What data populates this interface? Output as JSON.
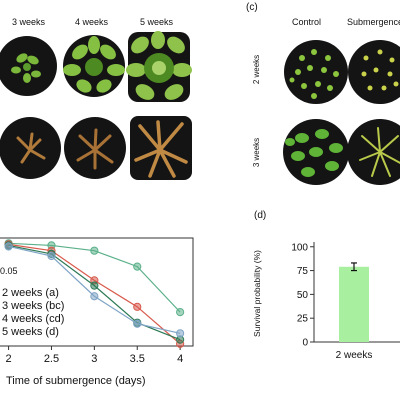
{
  "panel_a": {
    "top_labels": [
      "3 weeks",
      "4 weeks",
      "5 weeks"
    ],
    "colors": {
      "leaf": "#7bb73a",
      "leaf_dark": "#4e8a22",
      "wilted": "#b07a3a",
      "soil": "#141414"
    }
  },
  "panel_c": {
    "letter": "(c)",
    "col_labels": [
      "Control",
      "Submergence"
    ],
    "row_labels": [
      "2 weeks",
      "3 weeks"
    ]
  },
  "panel_d": {
    "letter": "(d)",
    "bar_color": "#a8f0a0"
  },
  "chart_data": [
    {
      "type": "line",
      "xlabel": "Time of submergence (days)",
      "ylabel": "",
      "xlim": [
        1.9,
        4.15
      ],
      "ylim": [
        -0.02,
        1.0
      ],
      "x_ticks": [
        "2",
        "2.5",
        "3",
        "3.5",
        "4"
      ],
      "annotations": [
        "0.05"
      ],
      "x": [
        2,
        2.5,
        3,
        3.5,
        4
      ],
      "series": [
        {
          "name": "2 weeks (a)",
          "color": "#5bb08a",
          "values": [
            0.95,
            0.93,
            0.88,
            0.73,
            0.3
          ]
        },
        {
          "name": "3 weeks (bc)",
          "color": "#d85a4c",
          "values": [
            0.94,
            0.88,
            0.6,
            0.35,
            0.0
          ]
        },
        {
          "name": "4 weeks (cd)",
          "color": "#2d7a56",
          "values": [
            0.93,
            0.85,
            0.55,
            0.2,
            0.04
          ]
        },
        {
          "name": "5 weeks (d)",
          "color": "#7fa4c6",
          "values": [
            0.92,
            0.83,
            0.45,
            0.19,
            0.1
          ]
        }
      ]
    },
    {
      "type": "bar",
      "ylabel": "Survival probability (%)",
      "ylim": [
        0,
        105
      ],
      "y_ticks": [
        "0",
        "25",
        "50",
        "75",
        "100"
      ],
      "categories": [
        "2 weeks"
      ],
      "values": [
        79
      ],
      "error": [
        4
      ]
    }
  ]
}
